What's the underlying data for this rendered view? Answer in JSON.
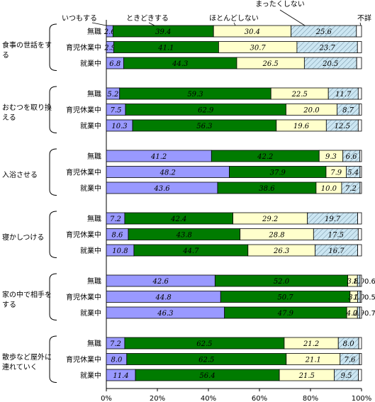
{
  "chart_data": {
    "type": "bar",
    "stacked": true,
    "orientation": "horizontal",
    "xlim": [
      0,
      100
    ],
    "x_ticks": [
      "0%",
      "20%",
      "40%",
      "60%",
      "80%",
      "100%"
    ],
    "legend": [
      "いつもする",
      "ときどきする",
      "ほとんどしない",
      "まったくしない",
      "不詳"
    ],
    "colors": {
      "いつもする": "#9999ff",
      "ときどきする": "#007b00",
      "ほとんどしない": "#ffffcc",
      "まったくしない": "#cce6f2",
      "不詳": "#ffffff"
    },
    "groups": [
      {
        "label": "食事の世話をする",
        "rows": [
          {
            "label": "無職",
            "values": [
              2.6,
              39.4,
              30.4,
              25.6,
              2.0
            ]
          },
          {
            "label": "育児休業中",
            "values": [
              2.9,
              41.1,
              30.7,
              23.7,
              1.6
            ]
          },
          {
            "label": "就業中",
            "values": [
              6.8,
              44.3,
              26.5,
              20.5,
              1.9
            ]
          }
        ]
      },
      {
        "label": "おむつを取り換える",
        "rows": [
          {
            "label": "無職",
            "values": [
              5.2,
              59.3,
              22.5,
              11.7,
              1.3
            ]
          },
          {
            "label": "育児休業中",
            "values": [
              7.5,
              62.9,
              20.0,
              8.7,
              0.9
            ]
          },
          {
            "label": "就業中",
            "values": [
              10.3,
              56.3,
              19.6,
              12.5,
              1.3
            ]
          }
        ]
      },
      {
        "label": "入浴させる",
        "rows": [
          {
            "label": "無職",
            "values": [
              41.2,
              42.2,
              9.3,
              6.6,
              0.7
            ]
          },
          {
            "label": "育児休業中",
            "values": [
              48.2,
              37.9,
              7.9,
              5.4,
              0.6
            ]
          },
          {
            "label": "就業中",
            "values": [
              43.6,
              38.6,
              10.0,
              7.2,
              0.6
            ]
          }
        ]
      },
      {
        "label": "寝かしつける",
        "rows": [
          {
            "label": "無職",
            "values": [
              7.2,
              42.4,
              29.2,
              19.7,
              1.5
            ]
          },
          {
            "label": "育児休業中",
            "values": [
              8.6,
              43.8,
              28.8,
              17.5,
              1.3
            ]
          },
          {
            "label": "就業中",
            "values": [
              10.8,
              44.7,
              26.3,
              16.7,
              1.5
            ]
          }
        ]
      },
      {
        "label": "家の中で相手をする",
        "rows": [
          {
            "label": "無職",
            "values": [
              42.6,
              52.0,
              3.8,
              1.0,
              0.6
            ],
            "nd_label": "0.6"
          },
          {
            "label": "育児休業中",
            "values": [
              44.8,
              50.7,
              3.0,
              1.0,
              0.5
            ],
            "nd_label": "0.5"
          },
          {
            "label": "就業中",
            "values": [
              46.3,
              47.9,
              4.2,
              0.9,
              0.7
            ],
            "nd_label": "0.7"
          }
        ]
      },
      {
        "label": "散歩など屋外に連れていく",
        "rows": [
          {
            "label": "無職",
            "values": [
              7.2,
              62.5,
              21.2,
              8.0,
              1.1
            ]
          },
          {
            "label": "育児休業中",
            "values": [
              8.0,
              62.5,
              21.1,
              7.6,
              0.8
            ]
          },
          {
            "label": "就業中",
            "values": [
              11.4,
              56.4,
              21.5,
              9.5,
              1.2
            ]
          }
        ]
      }
    ]
  }
}
